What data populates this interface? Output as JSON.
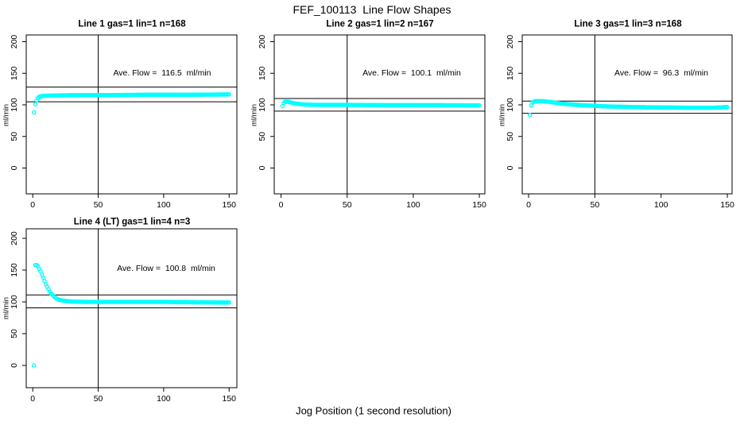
{
  "figure": {
    "title": "FEF_100113  Line Flow Shapes",
    "xlabel": "Jog Position (1 second resolution)",
    "background": "#ffffff",
    "point_color": "#00ffff",
    "axis_color": "#000000"
  },
  "chart_data": [
    {
      "type": "scatter",
      "title": "Line 1 gas=1 lin=1 n=168",
      "ylabel": "ml/min",
      "annotation": "Ave. Flow =  116.5  ml/min",
      "legend": "none",
      "grid": false,
      "x_ticks": [
        0,
        50,
        100,
        150
      ],
      "y_ticks": [
        0,
        50,
        100,
        150,
        200
      ],
      "xlim": [
        -5,
        155
      ],
      "ylim": [
        -44,
        210
      ],
      "vline_x": 50,
      "hlines": [
        128.2,
        104.9
      ],
      "points_keypoints": [
        [
          1,
          88
        ],
        [
          2,
          101
        ],
        [
          3,
          107
        ],
        [
          4,
          111
        ],
        [
          5,
          113
        ],
        [
          7,
          114
        ],
        [
          10,
          114.5
        ],
        [
          20,
          115
        ],
        [
          40,
          115.5
        ],
        [
          60,
          115.5
        ],
        [
          90,
          116
        ],
        [
          120,
          116
        ],
        [
          150,
          116.5
        ]
      ],
      "outliers": []
    },
    {
      "type": "scatter",
      "title": "Line 2 gas=1 lin=2 n=167",
      "ylabel": "ml/min",
      "annotation": "Ave. Flow =  100.1  ml/min",
      "legend": "none",
      "grid": false,
      "x_ticks": [
        0,
        50,
        100,
        150
      ],
      "y_ticks": [
        0,
        50,
        100,
        150,
        200
      ],
      "xlim": [
        -5,
        155
      ],
      "ylim": [
        -44,
        210
      ],
      "vline_x": 50,
      "hlines": [
        110.1,
        90.1
      ],
      "points_keypoints": [
        [
          1,
          98
        ],
        [
          2,
          103
        ],
        [
          3,
          105
        ],
        [
          5,
          105
        ],
        [
          7,
          104
        ],
        [
          10,
          102.5
        ],
        [
          13,
          101.5
        ],
        [
          18,
          100.5
        ],
        [
          25,
          100
        ],
        [
          50,
          100
        ],
        [
          80,
          99.5
        ],
        [
          120,
          99.5
        ],
        [
          150,
          99
        ]
      ],
      "outliers": []
    },
    {
      "type": "scatter",
      "title": "Line 3 gas=1 lin=3 n=168",
      "ylabel": "ml/min",
      "annotation": "Ave. Flow =  96.3  ml/min",
      "legend": "none",
      "grid": false,
      "x_ticks": [
        0,
        50,
        100,
        150
      ],
      "y_ticks": [
        0,
        50,
        100,
        150,
        200
      ],
      "xlim": [
        -5,
        155
      ],
      "ylim": [
        -44,
        210
      ],
      "vline_x": 50,
      "hlines": [
        105.9,
        86.7
      ],
      "points_keypoints": [
        [
          1,
          84
        ],
        [
          2,
          99
        ],
        [
          3,
          104
        ],
        [
          5,
          106
        ],
        [
          10,
          106
        ],
        [
          15,
          105
        ],
        [
          20,
          103.5
        ],
        [
          25,
          102
        ],
        [
          30,
          101
        ],
        [
          40,
          99.5
        ],
        [
          50,
          98.5
        ],
        [
          60,
          97.5
        ],
        [
          80,
          96.5
        ],
        [
          100,
          96
        ],
        [
          120,
          95.5
        ],
        [
          140,
          95.5
        ],
        [
          150,
          96.5
        ]
      ],
      "outliers": []
    },
    {
      "type": "scatter",
      "title": "Line 4 (LT) gas=1 lin=4 n=3",
      "ylabel": "ml/min",
      "annotation": "Ave. Flow =  100.8  ml/min",
      "legend": "none",
      "grid": false,
      "x_ticks": [
        0,
        50,
        100,
        150
      ],
      "y_ticks": [
        0,
        50,
        100,
        150,
        200
      ],
      "xlim": [
        -5,
        155
      ],
      "ylim": [
        -46,
        204
      ],
      "vline_x": 50,
      "hlines": [
        110.9,
        90.7
      ],
      "points_keypoints": [
        [
          2,
          158
        ],
        [
          3,
          158
        ],
        [
          4,
          156
        ],
        [
          5,
          152
        ],
        [
          6,
          148
        ],
        [
          7,
          143
        ],
        [
          8,
          138
        ],
        [
          9,
          133
        ],
        [
          10,
          128
        ],
        [
          11,
          124
        ],
        [
          12,
          120
        ],
        [
          13,
          116
        ],
        [
          14,
          113
        ],
        [
          15,
          111
        ],
        [
          16,
          109
        ],
        [
          17,
          107
        ],
        [
          18,
          105.5
        ],
        [
          19,
          104.5
        ],
        [
          20,
          103.5
        ],
        [
          22,
          102.5
        ],
        [
          25,
          101.5
        ],
        [
          30,
          100.5
        ],
        [
          40,
          100
        ],
        [
          60,
          100
        ],
        [
          80,
          100
        ],
        [
          100,
          100
        ],
        [
          120,
          99.5
        ],
        [
          150,
          99
        ]
      ],
      "outliers": [
        [
          1,
          0
        ]
      ]
    }
  ]
}
